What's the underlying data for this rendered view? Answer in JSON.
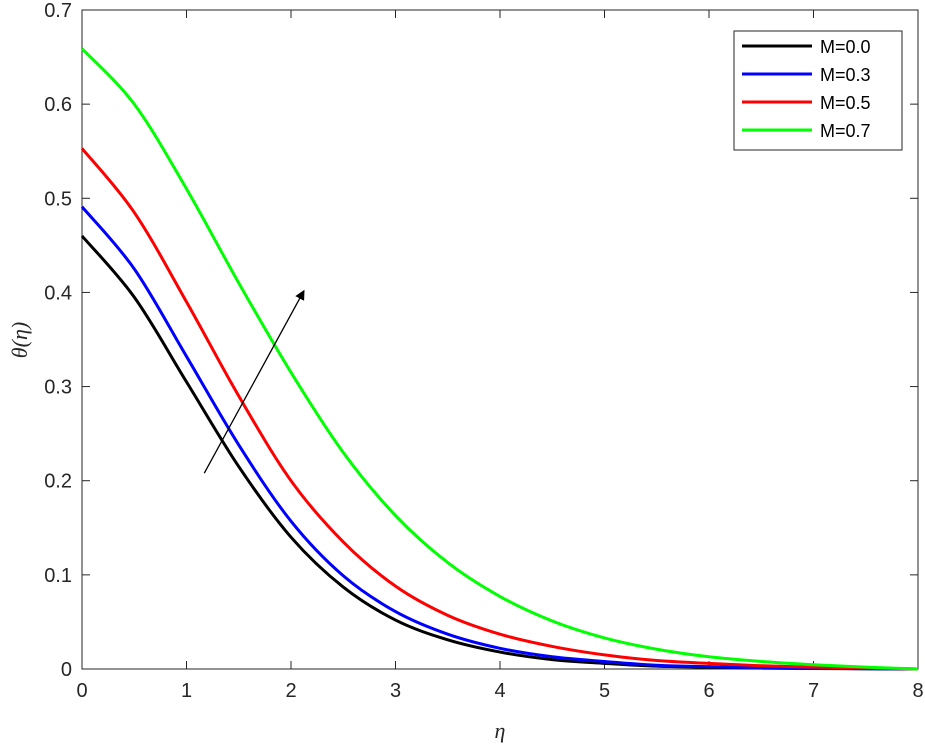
{
  "chart_data": {
    "type": "line",
    "xlabel": "η",
    "ylabel": "θ(η)",
    "xlim": [
      0,
      8
    ],
    "ylim": [
      0,
      0.7
    ],
    "xticks": [
      "0",
      "1",
      "2",
      "3",
      "4",
      "5",
      "6",
      "7",
      "8"
    ],
    "yticks": [
      "0",
      "0.1",
      "0.2",
      "0.3",
      "0.4",
      "0.5",
      "0.6",
      "0.7"
    ],
    "grid": false,
    "legend_position": "top-right",
    "x": [
      0,
      0.5,
      1,
      1.5,
      2,
      2.5,
      3,
      3.5,
      4,
      4.5,
      5,
      5.5,
      6,
      6.5,
      7,
      7.5,
      8
    ],
    "series": [
      {
        "name": "M=0.0",
        "color": "#000000",
        "values": [
          0.46,
          0.395,
          0.305,
          0.215,
          0.14,
          0.087,
          0.052,
          0.031,
          0.018,
          0.01,
          0.006,
          0.003,
          0.002,
          0.001,
          0.0005,
          0.0002,
          0.0
        ]
      },
      {
        "name": "M=0.3",
        "color": "#0000ff",
        "values": [
          0.491,
          0.425,
          0.332,
          0.238,
          0.157,
          0.099,
          0.061,
          0.037,
          0.022,
          0.013,
          0.008,
          0.004,
          0.0025,
          0.0015,
          0.0008,
          0.0003,
          0.0
        ]
      },
      {
        "name": "M=0.5",
        "color": "#ff0000",
        "values": [
          0.553,
          0.485,
          0.39,
          0.29,
          0.2,
          0.135,
          0.088,
          0.057,
          0.037,
          0.024,
          0.015,
          0.009,
          0.006,
          0.0035,
          0.002,
          0.001,
          0.0
        ]
      },
      {
        "name": "M=0.7",
        "color": "#00ff00",
        "values": [
          0.659,
          0.6,
          0.51,
          0.41,
          0.315,
          0.23,
          0.163,
          0.113,
          0.077,
          0.051,
          0.033,
          0.021,
          0.013,
          0.008,
          0.0045,
          0.002,
          0.0
        ]
      }
    ],
    "annotations": [
      {
        "type": "arrow",
        "from": [
          1.17,
          0.208
        ],
        "to": [
          2.12,
          0.401
        ]
      }
    ]
  }
}
